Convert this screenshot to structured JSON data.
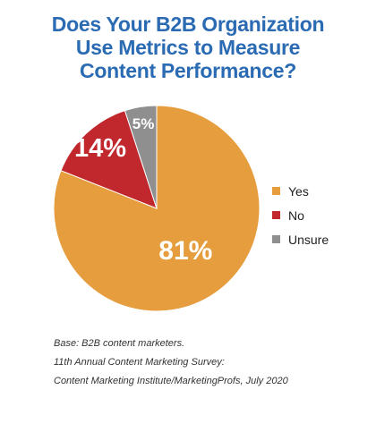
{
  "chart_data": {
    "type": "pie",
    "title_lines": [
      "Does Your B2B Organization",
      "Use Metrics to Measure",
      "Content Performance?"
    ],
    "slices": [
      {
        "label": "Yes",
        "value": 81,
        "display": "81%",
        "color": "#e59d3e"
      },
      {
        "label": "No",
        "value": 14,
        "display": "14%",
        "color": "#c1282d"
      },
      {
        "label": "Unsure",
        "value": 5,
        "display": "5%",
        "color": "#8f8f8f"
      }
    ],
    "legend_position": "right"
  },
  "source": {
    "lines": [
      "Base: B2B content marketers.",
      "11th Annual Content Marketing Survey:",
      "Content Marketing Institute/MarketingProfs, July 2020"
    ]
  }
}
